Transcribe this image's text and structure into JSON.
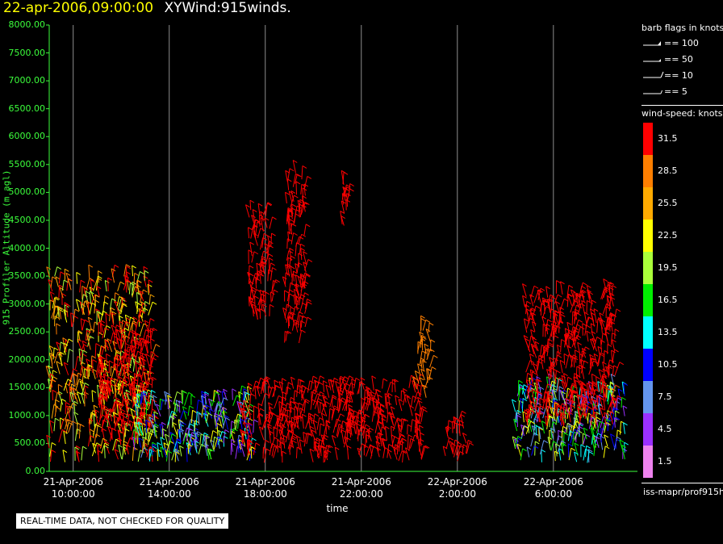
{
  "header": {
    "date": "22-apr-2006,09:00:00",
    "product": "XYWind:915winds."
  },
  "chart_data": {
    "type": "scatter",
    "ylabel": "915 Profiler Altitude (m agl)",
    "xlabel": "time",
    "ylim": [
      0,
      8000
    ],
    "y_ticks": [
      "0.00",
      "500.00",
      "1000.00",
      "1500.00",
      "2000.00",
      "2500.00",
      "3000.00",
      "3500.00",
      "4000.00",
      "4500.00",
      "5000.00",
      "5500.00",
      "6000.00",
      "6500.00",
      "7000.00",
      "7500.00",
      "8000.00"
    ],
    "x_ticks": [
      {
        "date": "21-Apr-2006",
        "time": "10:00:00",
        "hour": 10
      },
      {
        "date": "21-Apr-2006",
        "time": "14:00:00",
        "hour": 14
      },
      {
        "date": "21-Apr-2006",
        "time": "18:00:00",
        "hour": 18
      },
      {
        "date": "21-Apr-2006",
        "time": "22:00:00",
        "hour": 22
      },
      {
        "date": "22-Apr-2006",
        "time": "2:00:00",
        "hour": 26
      },
      {
        "date": "22-Apr-2006",
        "time": "6:00:00",
        "hour": 30
      }
    ],
    "xlim_hours": [
      9,
      33.5
    ],
    "grid": "vertical at x ticks",
    "regions": [
      {
        "t": [
          9.0,
          13.3
        ],
        "alt": [
          150,
          3500
        ],
        "speed": "mixed-high"
      },
      {
        "t": [
          11.0,
          13.3
        ],
        "alt": [
          700,
          2500
        ],
        "speed": 31.5
      },
      {
        "t": [
          12.5,
          17.5
        ],
        "alt": [
          150,
          1300
        ],
        "speed": "mixed-low"
      },
      {
        "t": [
          17.0,
          24.5
        ],
        "alt": [
          150,
          1500
        ],
        "speed": 31.5
      },
      {
        "t": [
          17.3,
          18.3
        ],
        "alt": [
          2700,
          4700
        ],
        "speed": 31.5
      },
      {
        "t": [
          18.8,
          19.7
        ],
        "alt": [
          2300,
          5400
        ],
        "speed": 31.5
      },
      {
        "t": [
          21.2,
          21.5
        ],
        "alt": [
          4400,
          5200
        ],
        "speed": 31.5
      },
      {
        "t": [
          24.3,
          24.9
        ],
        "alt": [
          1300,
          2600
        ],
        "speed": 28.5
      },
      {
        "t": [
          25.5,
          26.4
        ],
        "alt": [
          150,
          900
        ],
        "speed": 31.5
      },
      {
        "t": [
          28.4,
          33.0
        ],
        "alt": [
          150,
          1500
        ],
        "speed": "mixed-low"
      },
      {
        "t": [
          28.8,
          32.6
        ],
        "alt": [
          800,
          3200
        ],
        "speed": 31.5
      }
    ]
  },
  "legend_barbs": {
    "title": "barb flags in knots",
    "items": [
      {
        "label": "== 100",
        "kind": "pennant"
      },
      {
        "label": "== 50",
        "kind": "half-pennant"
      },
      {
        "label": "== 10",
        "kind": "full"
      },
      {
        "label": "== 5",
        "kind": "half"
      }
    ]
  },
  "legend_speed": {
    "title": "wind-speed: knots",
    "bins": [
      {
        "label": "31.5",
        "color": "#ff0000"
      },
      {
        "label": "28.5",
        "color": "#ff7f00"
      },
      {
        "label": "25.5",
        "color": "#ffaa00"
      },
      {
        "label": "22.5",
        "color": "#ffff00"
      },
      {
        "label": "19.5",
        "color": "#aaff3a"
      },
      {
        "label": "16.5",
        "color": "#00ee00"
      },
      {
        "label": "13.5",
        "color": "#00ffff"
      },
      {
        "label": "10.5",
        "color": "#0000ff"
      },
      {
        "label": "7.5",
        "color": "#6495ed"
      },
      {
        "label": "4.5",
        "color": "#9b30ff"
      },
      {
        "label": "1.5",
        "color": "#ee82ee"
      }
    ]
  },
  "footer": {
    "source": "iss-mapr/prof915h"
  },
  "qa_notice": "REAL-TIME DATA, NOT CHECKED FOR QUALITY"
}
